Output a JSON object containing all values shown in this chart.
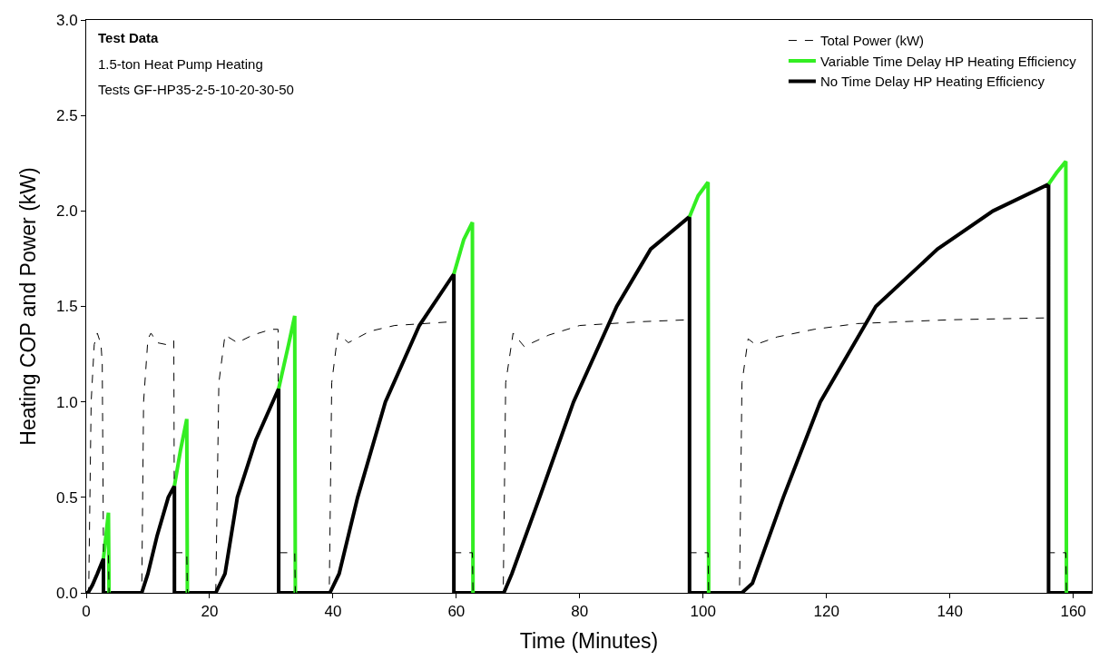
{
  "chart_data": {
    "type": "line",
    "xlabel": "Time (Minutes)",
    "ylabel": "Heating COP and Power (kW)",
    "xlim": [
      0,
      163
    ],
    "xticks": [
      0,
      20,
      40,
      60,
      80,
      100,
      120,
      140,
      160
    ],
    "ylim": [
      0,
      3
    ],
    "yticks": [
      {
        "value": 0,
        "label": "0.0"
      },
      {
        "value": 0.5,
        "label": "0.5"
      },
      {
        "value": 1,
        "label": "1.0"
      },
      {
        "value": 1.5,
        "label": "1.5"
      },
      {
        "value": 2,
        "label": "2.0"
      },
      {
        "value": 2.5,
        "label": "2.5"
      },
      {
        "value": 3,
        "label": "3.0"
      }
    ],
    "legend": "top right",
    "marker": "none",
    "annotations": [
      "Test Data",
      "1.5-ton Heat Pump Heating",
      "Tests GF-HP35-2-5-10-20-30-50"
    ],
    "series": [
      {
        "name": "Total Power (kW)",
        "color": "#000000",
        "line_style": "dashed",
        "x": [
          0,
          0.4,
          0.8,
          1.3,
          1.8,
          2.4,
          2.6,
          2.8,
          3.6,
          3.7,
          9.0,
          9.3,
          10.0,
          10.5,
          11.5,
          13,
          14.2,
          14.3,
          16.3,
          16.4,
          21,
          21.5,
          22.5,
          24.5,
          27,
          30,
          31.1,
          31.2,
          33.8,
          33.9,
          39.4,
          39.8,
          40.8,
          42.5,
          46,
          50,
          59.5,
          59.6,
          62.6,
          62.7,
          67.6,
          68,
          69.2,
          71,
          75,
          80,
          90,
          97.7,
          97.8,
          100.8,
          100.9,
          105.9,
          106.3,
          107.3,
          108.5,
          112,
          118,
          125,
          140,
          155.9,
          156,
          158.8,
          158.9,
          160
        ],
        "values": [
          0,
          0,
          1.0,
          1.3,
          1.36,
          1.3,
          1.2,
          0.21,
          0.21,
          0,
          0,
          1.0,
          1.33,
          1.36,
          1.31,
          1.3,
          1.32,
          0.21,
          0.21,
          0,
          0,
          1.1,
          1.35,
          1.31,
          1.35,
          1.38,
          1.38,
          0.21,
          0.21,
          0,
          0,
          1.1,
          1.36,
          1.31,
          1.37,
          1.4,
          1.42,
          0.21,
          0.21,
          0,
          0,
          1.1,
          1.36,
          1.29,
          1.35,
          1.4,
          1.42,
          1.43,
          0.21,
          0.21,
          0,
          0,
          1.1,
          1.33,
          1.3,
          1.34,
          1.38,
          1.41,
          1.43,
          1.44,
          0.21,
          0.21,
          0,
          0
        ]
      },
      {
        "name": "Variable Time Delay HP Heating Efficiency",
        "color": "#33ee22",
        "line_style": "solid",
        "x": [
          2.8,
          3.2,
          3.6,
          3.7,
          null,
          14.3,
          15.3,
          16.3,
          16.4,
          null,
          31.2,
          32.8,
          33.8,
          33.9,
          null,
          59.6,
          61.2,
          62.6,
          62.7,
          null,
          97.8,
          99.2,
          100.8,
          100.9,
          null,
          156,
          157.3,
          158.8,
          158.9
        ],
        "values": [
          0.18,
          0.3,
          0.42,
          0,
          null,
          0.56,
          0.75,
          0.91,
          0,
          null,
          1.07,
          1.3,
          1.45,
          0,
          null,
          1.67,
          1.85,
          1.94,
          0,
          null,
          1.97,
          2.08,
          2.15,
          0,
          null,
          2.14,
          2.2,
          2.26,
          0
        ]
      },
      {
        "name": "No Time Delay HP Heating Efficiency",
        "color": "#000000",
        "line_style": "solid",
        "x": [
          0,
          0.3,
          1.0,
          1.8,
          2.8,
          2.8,
          9.0,
          10.0,
          11.5,
          13.3,
          14.3,
          14.3,
          21,
          22.5,
          24.5,
          27.5,
          31.2,
          31.2,
          39.5,
          41,
          44,
          48.5,
          54,
          59.6,
          59.6,
          67.7,
          69,
          73.5,
          79,
          86,
          91.5,
          97.8,
          97.8,
          106.3,
          108,
          113,
          119,
          128,
          138,
          147,
          156,
          156,
          163
        ],
        "values": [
          0,
          0,
          0.04,
          0.1,
          0.18,
          0,
          0,
          0.1,
          0.3,
          0.5,
          0.56,
          0,
          0,
          0.1,
          0.5,
          0.8,
          1.07,
          0,
          0,
          0.1,
          0.5,
          1.0,
          1.4,
          1.67,
          0,
          0,
          0.1,
          0.5,
          1.0,
          1.5,
          1.8,
          1.97,
          0,
          0,
          0.05,
          0.5,
          1.0,
          1.5,
          1.8,
          2.0,
          2.14,
          0,
          0
        ]
      }
    ]
  }
}
